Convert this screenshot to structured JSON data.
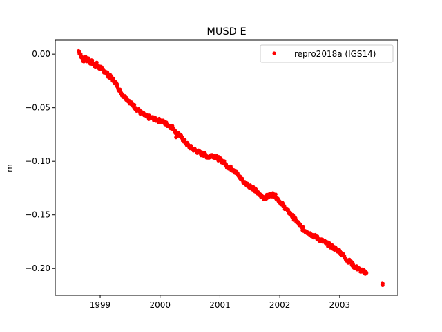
{
  "chart_data": {
    "type": "scatter",
    "title": "MUSD E",
    "xlabel": "",
    "ylabel": "m",
    "xlim": [
      1998.25,
      2003.97
    ],
    "ylim": [
      -0.225,
      0.013
    ],
    "x_ticks": [
      {
        "value": 1999.0,
        "label": "1999"
      },
      {
        "value": 2000.0,
        "label": "2000"
      },
      {
        "value": 2001.0,
        "label": "2001"
      },
      {
        "value": 2002.0,
        "label": "2002"
      },
      {
        "value": 2003.0,
        "label": "2003"
      }
    ],
    "y_ticks": [
      {
        "value": 0.0,
        "label": "0.00"
      },
      {
        "value": -0.05,
        "label": "−0.05"
      },
      {
        "value": -0.1,
        "label": "−0.10"
      },
      {
        "value": -0.15,
        "label": "−0.15"
      },
      {
        "value": -0.2,
        "label": "−0.20"
      }
    ],
    "grid": false,
    "legend_position": "top-right",
    "series": [
      {
        "name": "repro2018a (IGS14)",
        "color": "#ff0000",
        "marker": "circle",
        "points": [
          [
            1998.64,
            0.003
          ],
          [
            1998.66,
            0.001
          ],
          [
            1998.68,
            -0.002
          ],
          [
            1998.7,
            -0.004
          ],
          [
            1998.72,
            -0.006
          ],
          [
            1998.74,
            -0.005
          ],
          [
            1998.76,
            -0.004
          ],
          [
            1998.78,
            -0.006
          ],
          [
            1998.8,
            -0.005
          ],
          [
            1998.82,
            -0.007
          ],
          [
            1998.84,
            -0.008
          ],
          [
            1998.86,
            -0.007
          ],
          [
            1998.88,
            -0.009
          ],
          [
            1998.9,
            -0.01
          ],
          [
            1998.92,
            -0.011
          ],
          [
            1998.94,
            -0.009
          ],
          [
            1998.96,
            -0.012
          ],
          [
            1998.98,
            -0.013
          ],
          [
            1999.0,
            -0.012
          ],
          [
            1999.02,
            -0.014
          ],
          [
            1999.05,
            -0.015
          ],
          [
            1999.08,
            -0.016
          ],
          [
            1999.11,
            -0.018
          ],
          [
            1999.14,
            -0.02
          ],
          [
            1999.17,
            -0.021
          ],
          [
            1999.2,
            -0.023
          ],
          [
            1999.23,
            -0.025
          ],
          [
            1999.26,
            -0.027
          ],
          [
            1999.29,
            -0.03
          ],
          [
            1999.32,
            -0.033
          ],
          [
            1999.35,
            -0.036
          ],
          [
            1999.38,
            -0.038
          ],
          [
            1999.41,
            -0.04
          ],
          [
            1999.44,
            -0.041
          ],
          [
            1999.47,
            -0.043
          ],
          [
            1999.5,
            -0.045
          ],
          [
            1999.53,
            -0.047
          ],
          [
            1999.56,
            -0.048
          ],
          [
            1999.59,
            -0.05
          ],
          [
            1999.62,
            -0.052
          ],
          [
            1999.65,
            -0.053
          ],
          [
            1999.68,
            -0.055
          ],
          [
            1999.71,
            -0.056
          ],
          [
            1999.74,
            -0.057
          ],
          [
            1999.77,
            -0.058
          ],
          [
            1999.8,
            -0.059
          ],
          [
            1999.83,
            -0.059
          ],
          [
            1999.86,
            -0.06
          ],
          [
            1999.89,
            -0.06
          ],
          [
            1999.92,
            -0.061
          ],
          [
            1999.95,
            -0.061
          ],
          [
            1999.98,
            -0.062
          ],
          [
            2000.01,
            -0.062
          ],
          [
            2000.04,
            -0.063
          ],
          [
            2000.07,
            -0.064
          ],
          [
            2000.1,
            -0.065
          ],
          [
            2000.13,
            -0.066
          ],
          [
            2000.16,
            -0.067
          ],
          [
            2000.19,
            -0.068
          ],
          [
            2000.22,
            -0.069
          ],
          [
            2000.25,
            -0.071
          ],
          [
            2000.27,
            -0.077
          ],
          [
            2000.3,
            -0.074
          ],
          [
            2000.33,
            -0.076
          ],
          [
            2000.36,
            -0.078
          ],
          [
            2000.39,
            -0.08
          ],
          [
            2000.42,
            -0.082
          ],
          [
            2000.45,
            -0.084
          ],
          [
            2000.48,
            -0.086
          ],
          [
            2000.51,
            -0.087
          ],
          [
            2000.54,
            -0.088
          ],
          [
            2000.57,
            -0.089
          ],
          [
            2000.6,
            -0.09
          ],
          [
            2000.63,
            -0.091
          ],
          [
            2000.66,
            -0.092
          ],
          [
            2000.69,
            -0.093
          ],
          [
            2000.72,
            -0.093
          ],
          [
            2000.75,
            -0.094
          ],
          [
            2000.78,
            -0.095
          ],
          [
            2000.81,
            -0.096
          ],
          [
            2000.84,
            -0.095
          ],
          [
            2000.87,
            -0.094
          ],
          [
            2000.9,
            -0.095
          ],
          [
            2000.93,
            -0.096
          ],
          [
            2000.96,
            -0.097
          ],
          [
            2000.99,
            -0.098
          ],
          [
            2001.02,
            -0.099
          ],
          [
            2001.05,
            -0.1
          ],
          [
            2001.08,
            -0.102
          ],
          [
            2001.11,
            -0.104
          ],
          [
            2001.14,
            -0.105
          ],
          [
            2001.17,
            -0.106
          ],
          [
            2001.2,
            -0.107
          ],
          [
            2001.23,
            -0.108
          ],
          [
            2001.26,
            -0.11
          ],
          [
            2001.29,
            -0.112
          ],
          [
            2001.32,
            -0.114
          ],
          [
            2001.35,
            -0.116
          ],
          [
            2001.38,
            -0.118
          ],
          [
            2001.41,
            -0.12
          ],
          [
            2001.44,
            -0.121
          ],
          [
            2001.47,
            -0.122
          ],
          [
            2001.5,
            -0.123
          ],
          [
            2001.53,
            -0.124
          ],
          [
            2001.56,
            -0.125
          ],
          [
            2001.59,
            -0.127
          ],
          [
            2001.62,
            -0.129
          ],
          [
            2001.65,
            -0.131
          ],
          [
            2001.68,
            -0.132
          ],
          [
            2001.71,
            -0.133
          ],
          [
            2001.74,
            -0.134
          ],
          [
            2001.77,
            -0.133
          ],
          [
            2001.8,
            -0.133
          ],
          [
            2001.83,
            -0.132
          ],
          [
            2001.86,
            -0.131
          ],
          [
            2001.89,
            -0.131
          ],
          [
            2001.92,
            -0.132
          ],
          [
            2001.95,
            -0.134
          ],
          [
            2001.98,
            -0.136
          ],
          [
            2002.01,
            -0.138
          ],
          [
            2002.04,
            -0.14
          ],
          [
            2002.07,
            -0.142
          ],
          [
            2002.1,
            -0.144
          ],
          [
            2002.13,
            -0.146
          ],
          [
            2002.16,
            -0.148
          ],
          [
            2002.19,
            -0.15
          ],
          [
            2002.22,
            -0.152
          ],
          [
            2002.25,
            -0.154
          ],
          [
            2002.28,
            -0.156
          ],
          [
            2002.31,
            -0.158
          ],
          [
            2002.34,
            -0.16
          ],
          [
            2002.37,
            -0.162
          ],
          [
            2002.4,
            -0.164
          ],
          [
            2002.43,
            -0.165
          ],
          [
            2002.46,
            -0.166
          ],
          [
            2002.49,
            -0.167
          ],
          [
            2002.52,
            -0.168
          ],
          [
            2002.55,
            -0.169
          ],
          [
            2002.58,
            -0.17
          ],
          [
            2002.61,
            -0.171
          ],
          [
            2002.64,
            -0.172
          ],
          [
            2002.67,
            -0.173
          ],
          [
            2002.7,
            -0.174
          ],
          [
            2002.73,
            -0.175
          ],
          [
            2002.76,
            -0.176
          ],
          [
            2002.79,
            -0.177
          ],
          [
            2002.82,
            -0.178
          ],
          [
            2002.85,
            -0.179
          ],
          [
            2002.88,
            -0.18
          ],
          [
            2002.91,
            -0.181
          ],
          [
            2002.94,
            -0.182
          ],
          [
            2002.97,
            -0.183
          ],
          [
            2003.0,
            -0.184
          ],
          [
            2003.03,
            -0.186
          ],
          [
            2003.06,
            -0.188
          ],
          [
            2003.09,
            -0.19
          ],
          [
            2003.12,
            -0.192
          ],
          [
            2003.15,
            -0.193
          ],
          [
            2003.18,
            -0.194
          ],
          [
            2003.21,
            -0.196
          ],
          [
            2003.24,
            -0.198
          ],
          [
            2003.27,
            -0.199
          ],
          [
            2003.3,
            -0.2
          ],
          [
            2003.33,
            -0.201
          ],
          [
            2003.36,
            -0.202
          ],
          [
            2003.39,
            -0.203
          ],
          [
            2003.42,
            -0.203
          ],
          [
            2003.45,
            -0.204
          ],
          [
            2003.71,
            -0.215
          ],
          [
            2003.72,
            -0.214
          ]
        ]
      }
    ]
  }
}
